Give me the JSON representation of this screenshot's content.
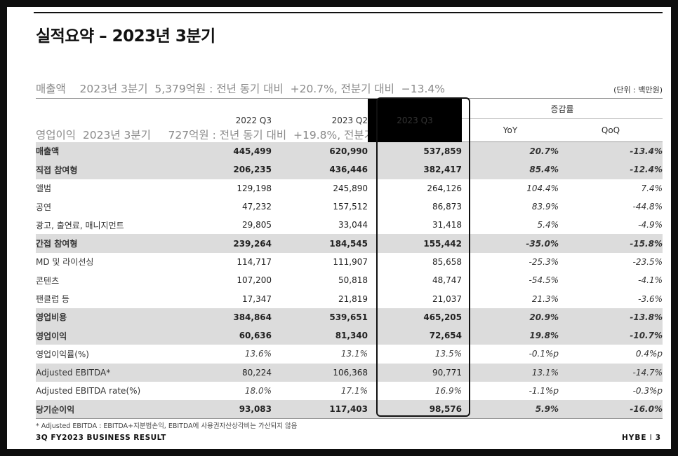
{
  "title": "실적요약 – 2023년 3분기",
  "summary": {
    "line1": "매출액    2023년 3분기  5,379억원 : 전년 동기 대비  +20.7%, 전분기 대비  −13.4%",
    "line2": "영업이익  2023년 3분기     727억원 : 전년 동기 대비  +19.8%, 전분기 대비  −10.7%"
  },
  "unit": "(단위 : 백만원)",
  "table": {
    "headers": {
      "p1": "2022 Q3",
      "p2": "2023 Q2",
      "p3": "2023 Q3",
      "group": "증감률",
      "yoy": "YoY",
      "qoq": "QoQ"
    },
    "rows": [
      {
        "label": "매출액",
        "v1": "445,499",
        "v2": "620,990",
        "v3": "537,859",
        "yoy": "20.7%",
        "qoq": "-13.4%"
      },
      {
        "label": "직접 참여형",
        "v1": "206,235",
        "v2": "436,446",
        "v3": "382,417",
        "yoy": "85.4%",
        "qoq": "-12.4%"
      },
      {
        "label": "앨범",
        "v1": "129,198",
        "v2": "245,890",
        "v3": "264,126",
        "yoy": "104.4%",
        "qoq": "7.4%"
      },
      {
        "label": "공연",
        "v1": "47,232",
        "v2": "157,512",
        "v3": "86,873",
        "yoy": "83.9%",
        "qoq": "-44.8%"
      },
      {
        "label": "광고, 출연료, 매니지먼트",
        "v1": "29,805",
        "v2": "33,044",
        "v3": "31,418",
        "yoy": "5.4%",
        "qoq": "-4.9%"
      },
      {
        "label": "간접 참여형",
        "v1": "239,264",
        "v2": "184,545",
        "v3": "155,442",
        "yoy": "-35.0%",
        "qoq": "-15.8%"
      },
      {
        "label": "MD 및 라이선싱",
        "v1": "114,717",
        "v2": "111,907",
        "v3": "85,658",
        "yoy": "-25.3%",
        "qoq": "-23.5%"
      },
      {
        "label": "콘텐츠",
        "v1": "107,200",
        "v2": "50,818",
        "v3": "48,747",
        "yoy": "-54.5%",
        "qoq": "-4.1%"
      },
      {
        "label": "팬클럽 등",
        "v1": "17,347",
        "v2": "21,819",
        "v3": "21,037",
        "yoy": "21.3%",
        "qoq": "-3.6%"
      },
      {
        "label": "영업비용",
        "v1": "384,864",
        "v2": "539,651",
        "v3": "465,205",
        "yoy": "20.9%",
        "qoq": "-13.8%"
      },
      {
        "label": "영업이익",
        "v1": "60,636",
        "v2": "81,340",
        "v3": "72,654",
        "yoy": "19.8%",
        "qoq": "-10.7%"
      },
      {
        "label": "영업이익률(%)",
        "v1": "13.6%",
        "v2": "13.1%",
        "v3": "13.5%",
        "yoy": "-0.1%p",
        "qoq": "0.4%p"
      },
      {
        "label": "Adjusted EBITDA*",
        "v1": "80,224",
        "v2": "106,368",
        "v3": "90,771",
        "yoy": "13.1%",
        "qoq": "-14.7%"
      },
      {
        "label": "Adjusted EBITDA rate(%)",
        "v1": "18.0%",
        "v2": "17.1%",
        "v3": "16.9%",
        "yoy": "-1.1%p",
        "qoq": "-0.3%p"
      },
      {
        "label": "당기순이익",
        "v1": "93,083",
        "v2": "117,403",
        "v3": "98,576",
        "yoy": "5.9%",
        "qoq": "-16.0%"
      }
    ]
  },
  "footnote": "* Adjusted EBITDA : EBITDA+지분법손익, EBITDA에 사용권자산상각비는 가산되지 않음",
  "footer": {
    "left": "3Q FY2023 BUSINESS RESULT",
    "brand": "HYBE",
    "separator": "I",
    "page": "3"
  },
  "colors": {
    "highlight_header_bg": "#000000",
    "shaded_row_bg": "#dcdcdc",
    "summary_text": "#8a8a8a"
  }
}
